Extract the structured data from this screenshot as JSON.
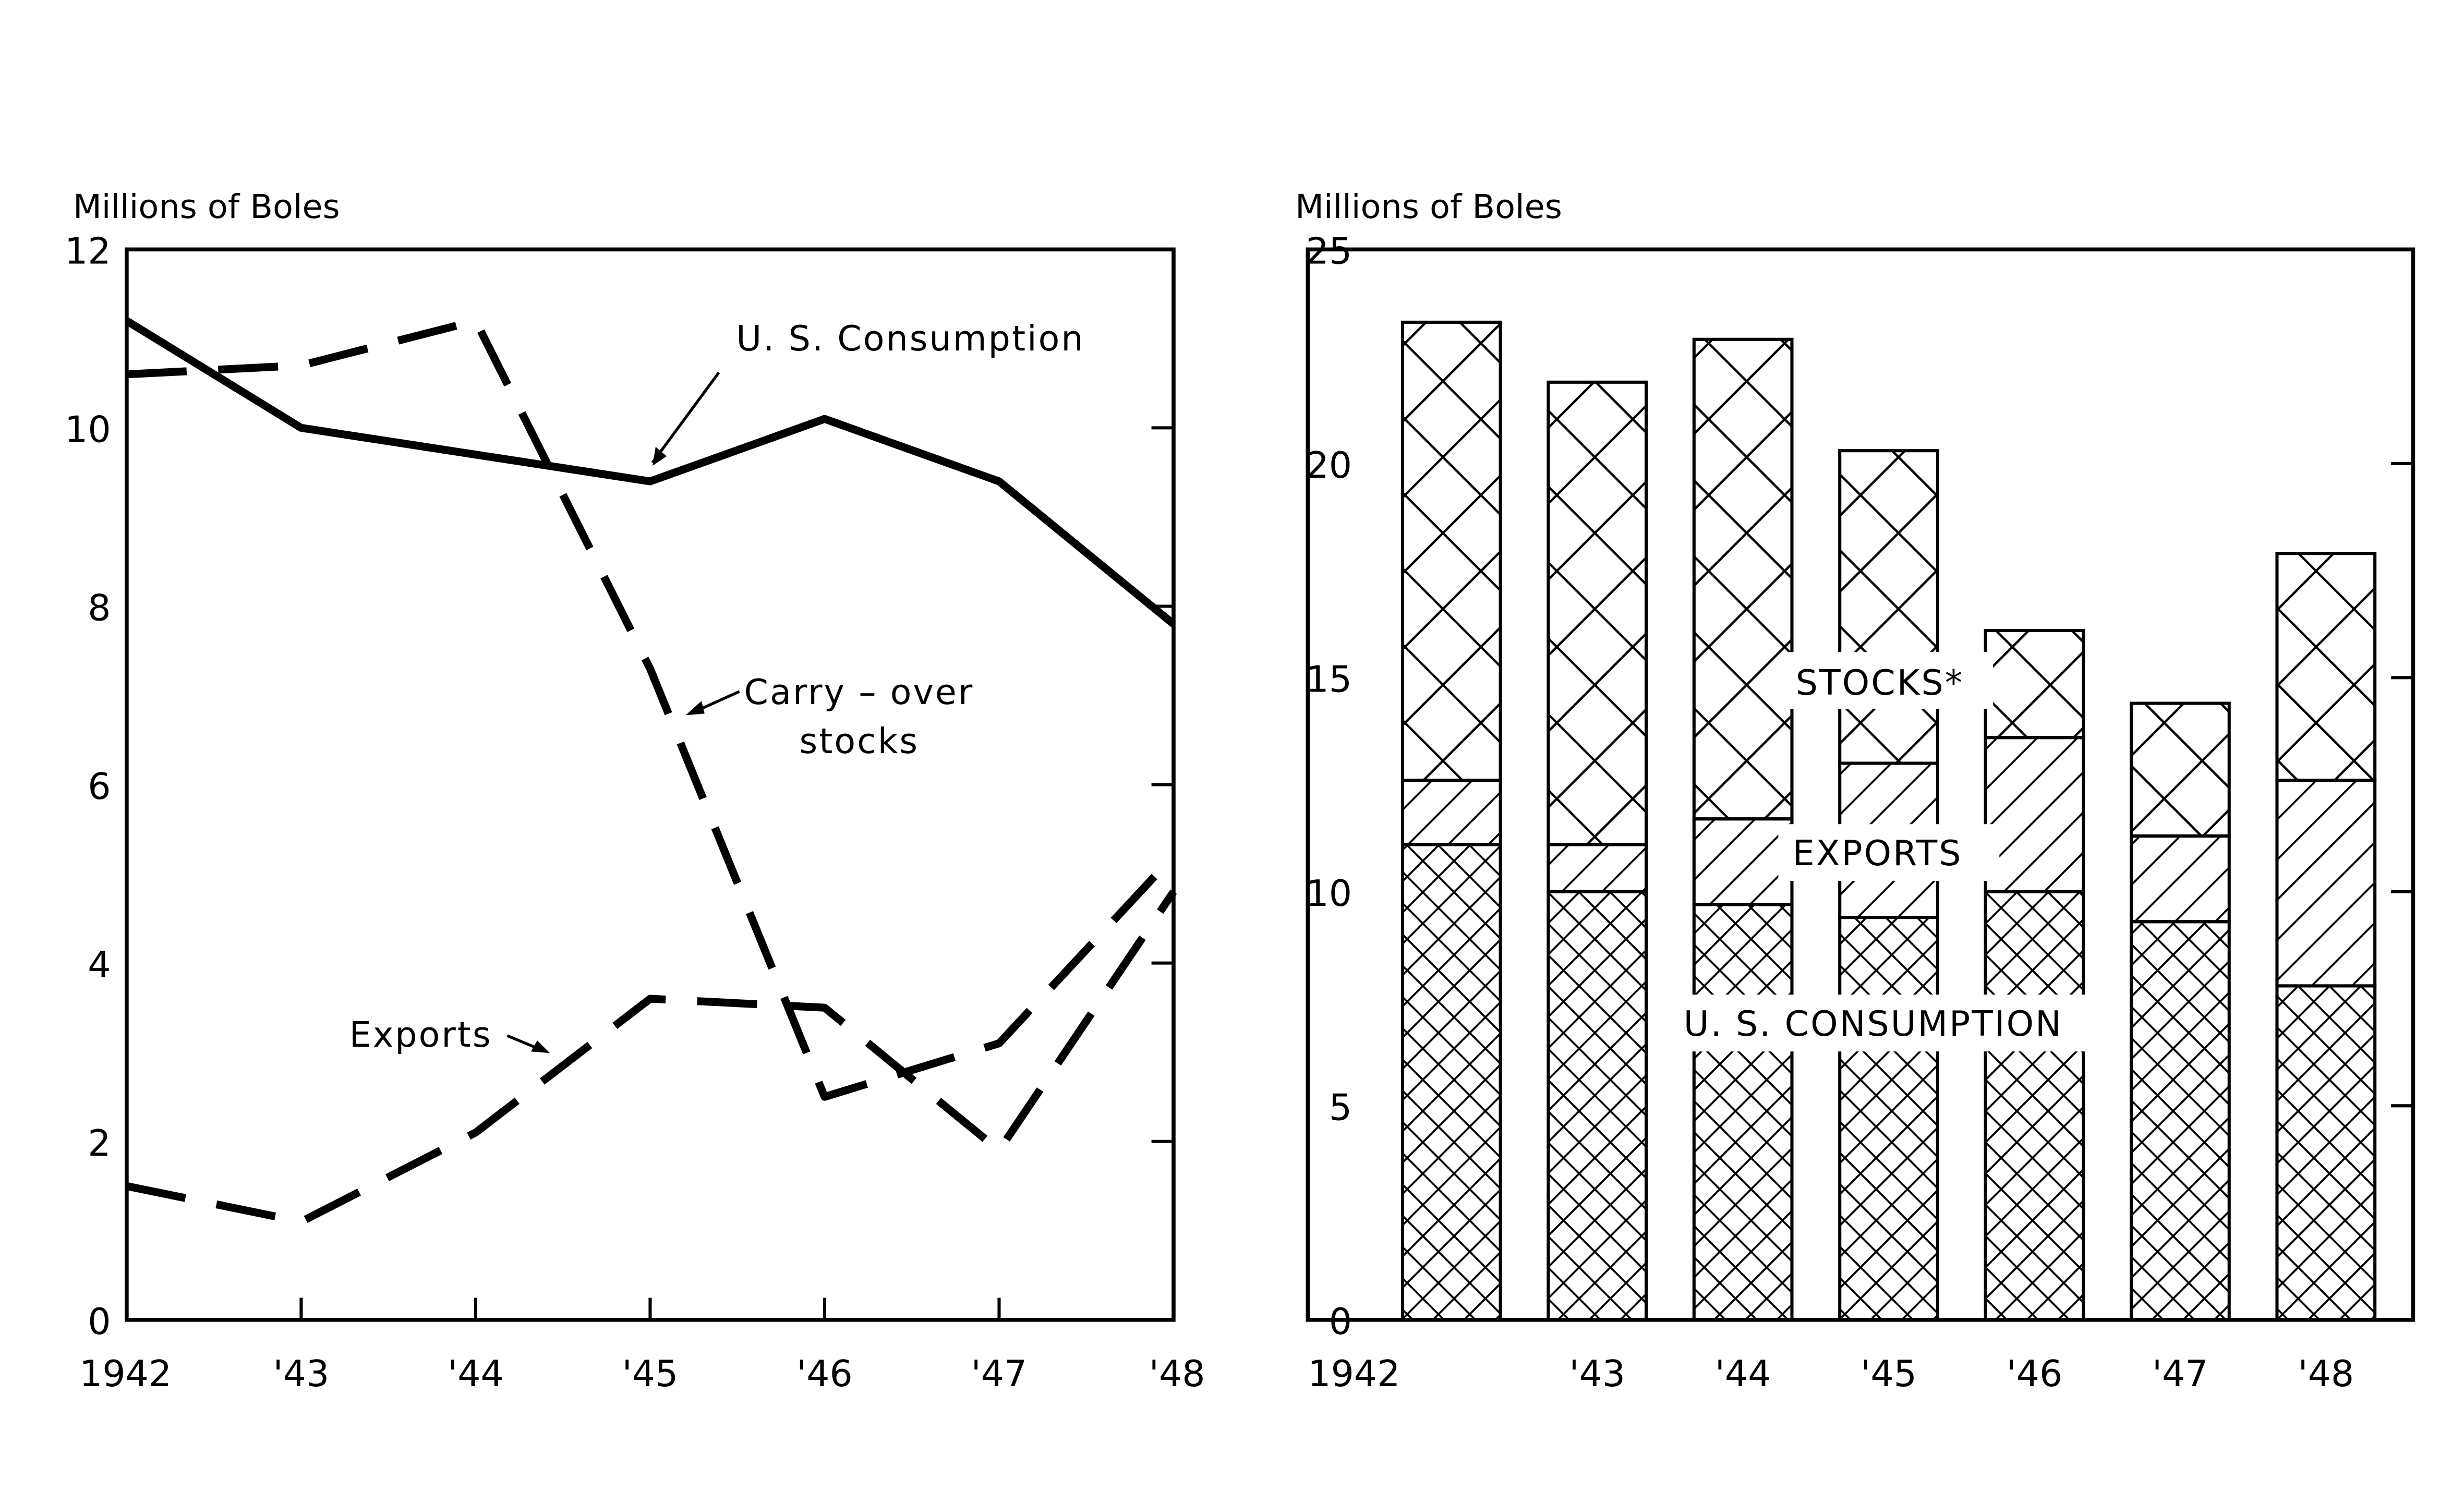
{
  "chart_data": [
    {
      "type": "line",
      "ylabel": "Millions of Boles",
      "x": [
        "1942",
        "'43",
        "'44",
        "'45",
        "'46",
        "'47",
        "'48"
      ],
      "ylim": [
        0,
        12
      ],
      "yticks": [
        0,
        2,
        4,
        6,
        8,
        10,
        12
      ],
      "grid": false,
      "series": [
        {
          "name": "U. S. Consumption",
          "style": "solid",
          "values": [
            11.2,
            10.0,
            9.7,
            9.4,
            10.1,
            9.4,
            7.8
          ]
        },
        {
          "name": "Carry – over stocks",
          "style": "dashed",
          "values": [
            10.6,
            10.7,
            11.2,
            7.3,
            2.5,
            3.1,
            5.2
          ]
        },
        {
          "name": "Exports",
          "style": "dashed",
          "values": [
            1.5,
            1.1,
            2.1,
            3.6,
            3.5,
            1.9,
            4.8
          ]
        }
      ],
      "annotations": [
        "U. S. Consumption",
        "Carry – over",
        "stocks",
        "Exports"
      ]
    },
    {
      "type": "bar",
      "stacked": true,
      "ylabel": "Millions of Boles",
      "categories": [
        "1942",
        "'43",
        "'44",
        "'45",
        "'46",
        "'47",
        "'48"
      ],
      "ylim": [
        0,
        25
      ],
      "yticks": [
        0,
        5,
        10,
        15,
        20,
        25
      ],
      "grid": false,
      "series": [
        {
          "name": "U. S. CONSUMPTION",
          "pattern": "fine-crosshatch",
          "values": [
            11.1,
            10.0,
            9.7,
            9.4,
            10.0,
            9.3,
            7.8
          ]
        },
        {
          "name": "EXPORTS",
          "pattern": "diagonal-hatch",
          "values": [
            1.5,
            1.1,
            2.0,
            3.6,
            3.6,
            2.0,
            4.8
          ]
        },
        {
          "name": "STOCKS*",
          "pattern": "crosshatch",
          "values": [
            10.7,
            10.8,
            11.2,
            7.3,
            2.5,
            3.1,
            5.3
          ]
        }
      ]
    }
  ]
}
